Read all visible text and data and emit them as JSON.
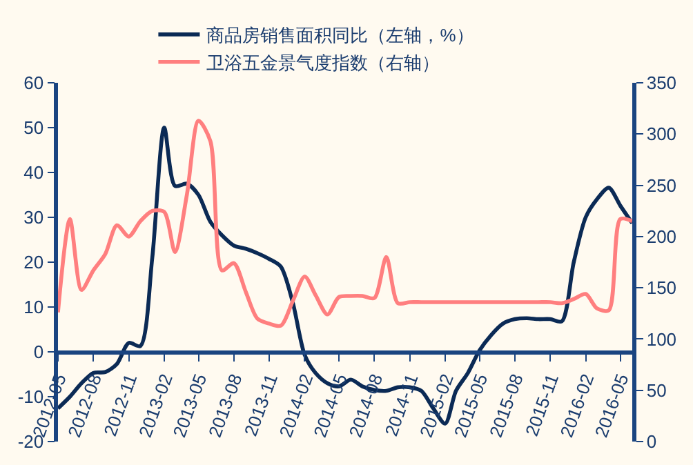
{
  "chart_data": {
    "type": "line",
    "x": [
      "2012-05",
      "2012-06",
      "2012-07",
      "2012-08",
      "2012-09",
      "2012-10",
      "2012-11",
      "2012-12",
      "2013-01",
      "2013-02",
      "2013-03",
      "2013-04",
      "2013-05",
      "2013-06",
      "2013-07",
      "2013-08",
      "2013-09",
      "2013-10",
      "2013-11",
      "2013-12",
      "2014-01",
      "2014-02",
      "2014-03",
      "2014-04",
      "2014-05",
      "2014-06",
      "2014-07",
      "2014-08",
      "2014-09",
      "2014-10",
      "2014-11",
      "2014-12",
      "2015-01",
      "2015-02",
      "2015-03",
      "2015-04",
      "2015-05",
      "2015-06",
      "2015-07",
      "2015-08",
      "2015-09",
      "2015-10",
      "2015-11",
      "2015-12",
      "2016-01",
      "2016-02",
      "2016-03",
      "2016-04",
      "2016-05",
      "2016-06"
    ],
    "series": [
      {
        "name": "商品房销售面积同比（左轴，%）",
        "color": "#0b2a55",
        "values": [
          -12.6,
          -10,
          -7,
          -4.7,
          -4.5,
          -2.7,
          2,
          1.3,
          21,
          50,
          37,
          37.5,
          35,
          29,
          26,
          23.7,
          23,
          22,
          20.7,
          19,
          11,
          -0.7,
          -4.7,
          -7,
          -7.7,
          -6.2,
          -7.7,
          -8.5,
          -8.7,
          -7.9,
          -7.9,
          -8.7,
          -12.6,
          -16,
          -8.7,
          -4.7,
          0.3,
          3.8,
          6.3,
          7.3,
          7.5,
          7.3,
          7.3,
          6.8,
          20,
          30,
          34,
          36.6,
          32.6,
          28.7
        ]
      },
      {
        "name": "卫浴五金景气度指数（右轴）",
        "color": "#ff7f7f",
        "axis": "y2",
        "values": [
          126,
          217,
          148,
          167,
          183,
          211,
          200,
          215,
          225,
          224,
          185,
          241,
          313,
          293,
          167,
          174,
          146,
          120,
          115,
          113,
          137,
          161,
          143,
          124,
          141,
          142,
          142,
          140,
          180,
          135,
          136,
          136,
          136,
          136,
          136,
          136,
          136,
          136,
          136,
          136,
          136,
          136,
          136,
          135,
          139,
          144,
          130,
          128,
          217,
          215
        ]
      }
    ],
    "xlim": [
      "2012-05",
      "2016-06"
    ],
    "xticks": [
      "2012-05",
      "2012-08",
      "2012-11",
      "2013-02",
      "2013-05",
      "2013-08",
      "2013-11",
      "2014-02",
      "2014-05",
      "2014-08",
      "2014-11",
      "2015-02",
      "2015-05",
      "2015-08",
      "2015-11",
      "2016-02",
      "2016-05"
    ],
    "ylim": [
      -20,
      60
    ],
    "yticks": [
      -20,
      -10,
      0,
      10,
      20,
      30,
      40,
      50,
      60
    ],
    "y2lim": [
      0,
      350
    ],
    "y2ticks": [
      0,
      50,
      100,
      150,
      200,
      250,
      300,
      350
    ],
    "legend": "top",
    "grid": false,
    "marker": "none",
    "line_style": "solid"
  }
}
